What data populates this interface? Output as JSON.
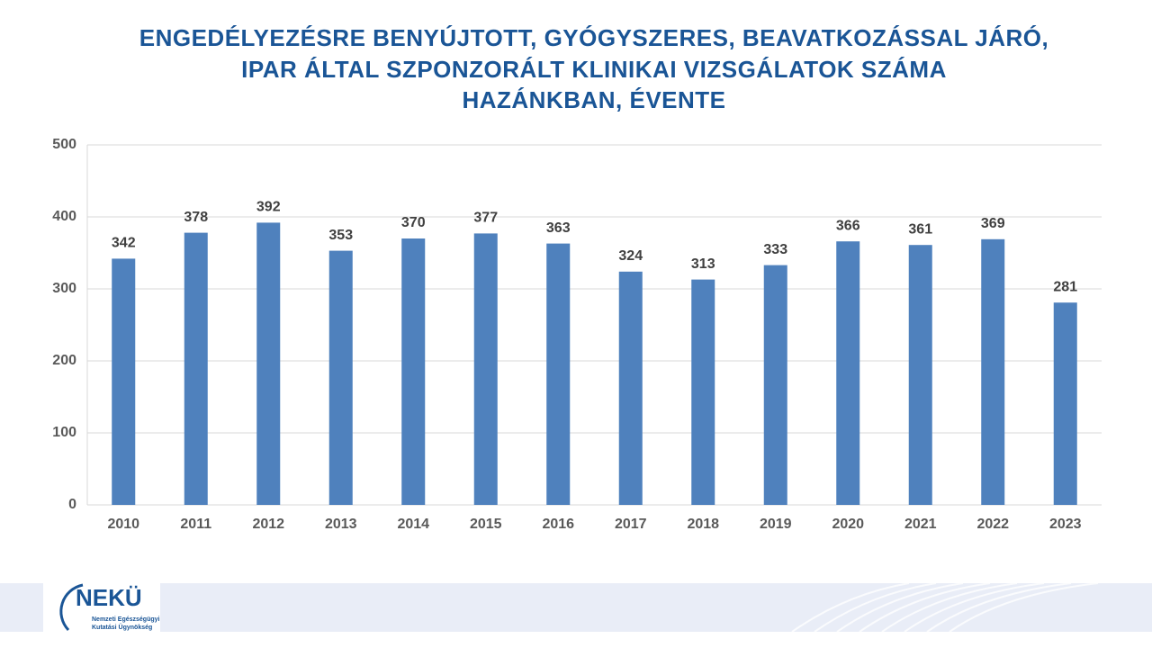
{
  "chart_data": {
    "type": "bar",
    "title": [
      "ENGEDÉLYEZÉSRE BENYÚJTOTT, GYÓGYSZERES, BEAVATKOZÁSSAL JÁRÓ,",
      "IPAR ÁLTAL SZPONZORÁLT KLINIKAI VIZSGÁLATOK SZÁMA",
      "HAZÁNKBAN, ÉVENTE"
    ],
    "categories": [
      "2010",
      "2011",
      "2012",
      "2013",
      "2014",
      "2015",
      "2016",
      "2017",
      "2018",
      "2019",
      "2020",
      "2021",
      "2022",
      "2023"
    ],
    "values": [
      342,
      378,
      392,
      353,
      370,
      377,
      363,
      324,
      313,
      333,
      366,
      361,
      369,
      281
    ],
    "color": "#4f81bd",
    "ylim": [
      0,
      500
    ],
    "yticks": [
      0,
      100,
      200,
      300,
      400,
      500
    ],
    "grid": true
  },
  "footer": {
    "logo": "NEKÜ",
    "agency": [
      "Nemzeti Egészségügyi",
      "Kutatási Ügynökség"
    ]
  }
}
